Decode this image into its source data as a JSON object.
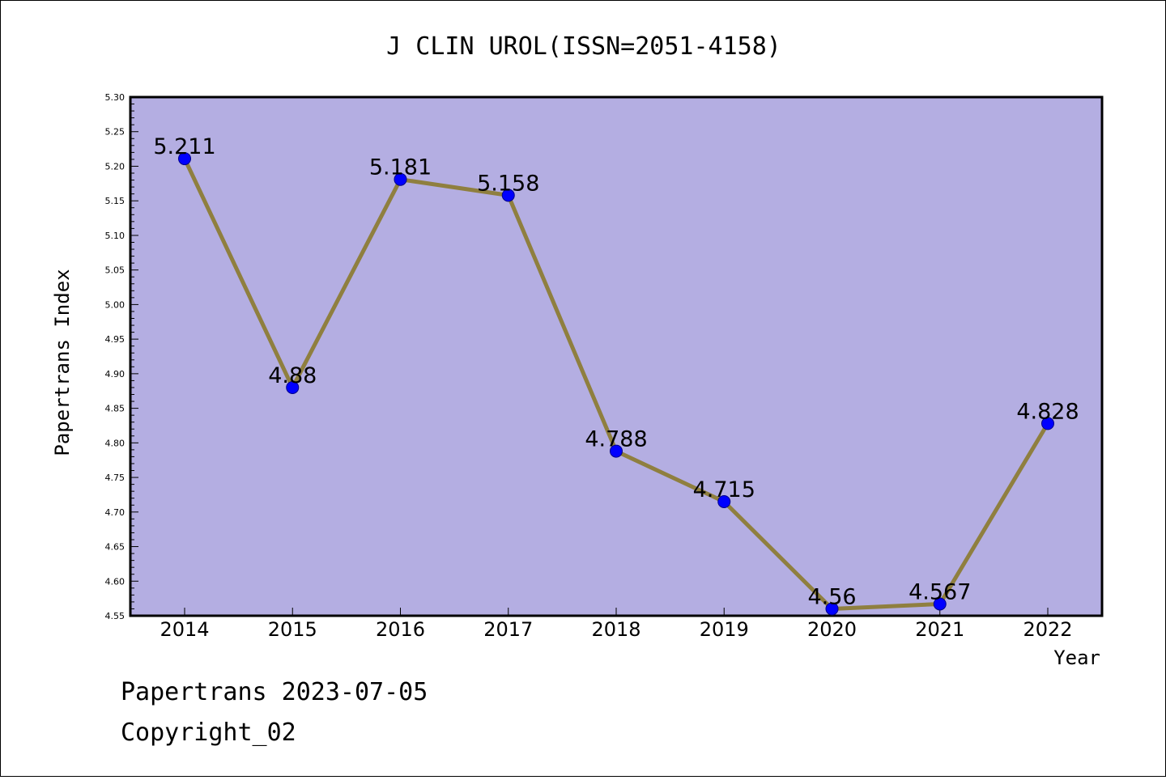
{
  "chart_data": {
    "type": "line",
    "title": "J CLIN UROL(ISSN=2051-4158)",
    "xlabel": "Year",
    "ylabel": "Papertrans Index",
    "categories": [
      "2014",
      "2015",
      "2016",
      "2017",
      "2018",
      "2019",
      "2020",
      "2021",
      "2022"
    ],
    "values": [
      5.211,
      4.88,
      5.181,
      5.158,
      4.788,
      4.715,
      4.56,
      4.567,
      4.828
    ],
    "data_labels": [
      "5.211",
      "4.88",
      "5.181",
      "5.158",
      "4.788",
      "4.715",
      "4.56",
      "4.567",
      "4.828"
    ],
    "ylim": [
      4.55,
      5.3
    ],
    "yticks": [
      "4.55",
      "4.60",
      "4.65",
      "4.70",
      "4.75",
      "4.80",
      "4.85",
      "4.90",
      "4.95",
      "5.00",
      "5.05",
      "5.10",
      "5.15",
      "5.20",
      "5.25",
      "5.30"
    ],
    "grid": false,
    "legend": "none",
    "colors": {
      "plot_background": "#b4aee2",
      "line": "#8f7f3f",
      "marker": "#0000ff"
    }
  },
  "footer": {
    "line1": "Papertrans 2023-07-05",
    "line2": "Copyright_02"
  }
}
